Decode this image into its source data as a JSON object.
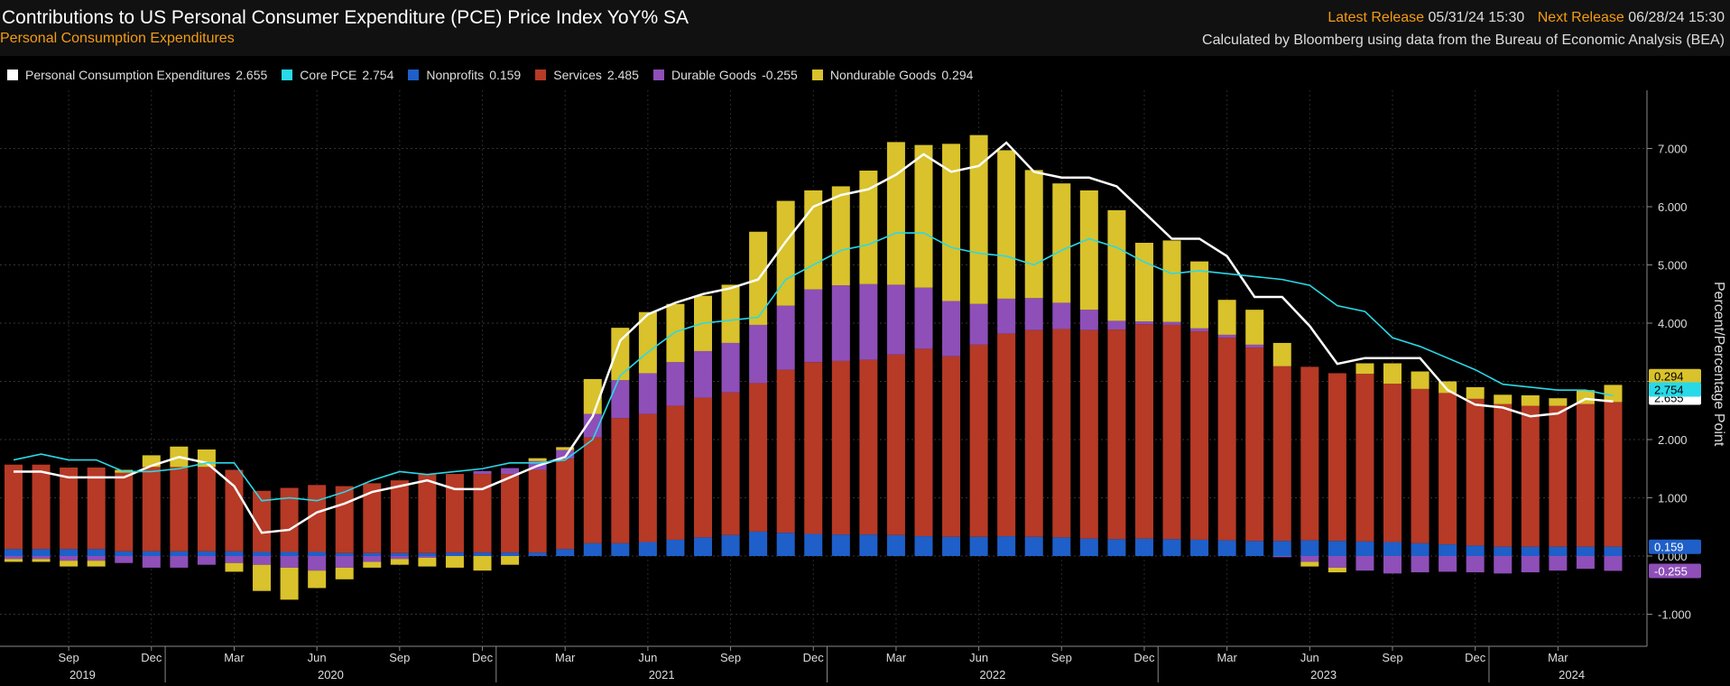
{
  "header": {
    "title": "Contributions to US Personal Consumer Expenditure (PCE) Price Index YoY% SA",
    "subtitle": "Personal Consumption Expenditures",
    "latest_release_label": "Latest Release",
    "latest_release_value": "05/31/24 15:30",
    "next_release_label": "Next Release",
    "next_release_value": "06/28/24 15:30",
    "source": "Calculated by Bloomberg using data from the Bureau of Economic Analysis (BEA)"
  },
  "legend": [
    {
      "name": "Personal Consumption Expenditures",
      "value": "2.655",
      "color": "#ffffff"
    },
    {
      "name": "Core PCE",
      "value": "2.754",
      "color": "#29d9e8"
    },
    {
      "name": "Nonprofits",
      "value": "0.159",
      "color": "#1f5fc9"
    },
    {
      "name": "Services",
      "value": "2.485",
      "color": "#b63a26"
    },
    {
      "name": "Durable Goods",
      "value": "-0.255",
      "color": "#8e4fb8"
    },
    {
      "name": "Nondurable Goods",
      "value": "0.294",
      "color": "#d9c22b"
    }
  ],
  "chart_data": {
    "type": "bar",
    "stacked": true,
    "ylabel": "Percent/Percentage Point",
    "ylim": [
      -1.5,
      8.0
    ],
    "yticks": [
      "7.000",
      "6.000",
      "5.000",
      "4.000",
      "3.000",
      "2.000",
      "1.000",
      "0.000",
      "-1.000"
    ],
    "ytick_values": [
      7,
      6,
      5,
      4,
      3,
      2,
      1,
      0,
      -1
    ],
    "grid": true,
    "legend_position": "top-left",
    "x_axis": {
      "month_labels": [
        {
          "index": 2,
          "label": "Sep"
        },
        {
          "index": 5,
          "label": "Dec"
        },
        {
          "index": 8,
          "label": "Mar"
        },
        {
          "index": 11,
          "label": "Jun"
        },
        {
          "index": 14,
          "label": "Sep"
        },
        {
          "index": 17,
          "label": "Dec"
        },
        {
          "index": 20,
          "label": "Mar"
        },
        {
          "index": 23,
          "label": "Jun"
        },
        {
          "index": 26,
          "label": "Sep"
        },
        {
          "index": 29,
          "label": "Dec"
        },
        {
          "index": 32,
          "label": "Mar"
        },
        {
          "index": 35,
          "label": "Jun"
        },
        {
          "index": 38,
          "label": "Sep"
        },
        {
          "index": 41,
          "label": "Dec"
        },
        {
          "index": 44,
          "label": "Mar"
        },
        {
          "index": 47,
          "label": "Jun"
        },
        {
          "index": 50,
          "label": "Sep"
        },
        {
          "index": 53,
          "label": "Dec"
        },
        {
          "index": 56,
          "label": "Mar"
        }
      ],
      "year_labels": [
        {
          "center": 2.5,
          "label": "2019"
        },
        {
          "center": 11.5,
          "label": "2020"
        },
        {
          "center": 23.5,
          "label": "2021"
        },
        {
          "center": 35.5,
          "label": "2022"
        },
        {
          "center": 47.5,
          "label": "2023"
        },
        {
          "center": 56.5,
          "label": "2024"
        }
      ],
      "year_boundaries": [
        5.5,
        17.5,
        29.5,
        41.5,
        53.5
      ]
    },
    "series": [
      {
        "name": "Nonprofits",
        "color": "#1f5fc9",
        "values": [
          0.12,
          0.12,
          0.12,
          0.12,
          0.08,
          0.08,
          0.08,
          0.08,
          0.08,
          0.07,
          0.07,
          0.07,
          0.05,
          0.05,
          0.05,
          0.05,
          0.06,
          0.06,
          0.06,
          0.06,
          0.12,
          0.22,
          0.22,
          0.24,
          0.28,
          0.32,
          0.36,
          0.42,
          0.4,
          0.38,
          0.37,
          0.37,
          0.36,
          0.34,
          0.33,
          0.33,
          0.34,
          0.33,
          0.32,
          0.3,
          0.29,
          0.3,
          0.29,
          0.28,
          0.27,
          0.26,
          0.26,
          0.27,
          0.26,
          0.25,
          0.24,
          0.22,
          0.2,
          0.18,
          0.16,
          0.16,
          0.16,
          0.16,
          0.16
        ]
      },
      {
        "name": "Services",
        "color": "#b63a26",
        "values": [
          1.45,
          1.45,
          1.4,
          1.4,
          1.35,
          1.45,
          1.45,
          1.45,
          1.4,
          1.05,
          1.1,
          1.15,
          1.15,
          1.2,
          1.25,
          1.35,
          1.35,
          1.35,
          1.35,
          1.42,
          1.55,
          1.82,
          2.15,
          2.2,
          2.3,
          2.4,
          2.45,
          2.55,
          2.8,
          2.95,
          2.98,
          3.0,
          3.1,
          3.22,
          3.1,
          3.3,
          3.48,
          3.55,
          3.58,
          3.58,
          3.6,
          3.68,
          3.68,
          3.58,
          3.48,
          3.32,
          3.0,
          2.98,
          2.88,
          2.88,
          2.72,
          2.65,
          2.6,
          2.52,
          2.45,
          2.42,
          2.42,
          2.45,
          2.485
        ]
      },
      {
        "name": "Durable Goods",
        "color": "#8e4fb8",
        "values": [
          -0.05,
          -0.05,
          -0.08,
          -0.08,
          -0.12,
          -0.2,
          -0.2,
          -0.15,
          -0.12,
          -0.15,
          -0.2,
          -0.25,
          -0.2,
          -0.1,
          -0.05,
          -0.03,
          0.0,
          0.05,
          0.1,
          0.15,
          0.15,
          0.4,
          0.65,
          0.7,
          0.75,
          0.8,
          0.85,
          1.0,
          1.1,
          1.25,
          1.3,
          1.3,
          1.2,
          1.05,
          0.95,
          0.7,
          0.6,
          0.55,
          0.45,
          0.35,
          0.15,
          0.05,
          0.05,
          0.05,
          0.05,
          0.05,
          -0.02,
          -0.1,
          -0.2,
          -0.25,
          -0.3,
          -0.28,
          -0.27,
          -0.28,
          -0.3,
          -0.28,
          -0.25,
          -0.22,
          -0.255
        ]
      },
      {
        "name": "Nondurable Goods",
        "color": "#d9c22b",
        "values": [
          -0.05,
          -0.05,
          -0.1,
          -0.1,
          0.05,
          0.2,
          0.35,
          0.3,
          -0.15,
          -0.45,
          -0.55,
          -0.3,
          -0.2,
          -0.1,
          -0.1,
          -0.15,
          -0.2,
          -0.25,
          -0.15,
          0.05,
          0.05,
          0.6,
          0.9,
          1.05,
          1.0,
          0.95,
          1.0,
          1.6,
          1.8,
          1.7,
          1.7,
          1.95,
          2.45,
          2.45,
          2.7,
          2.9,
          2.55,
          2.2,
          2.05,
          2.05,
          1.9,
          1.35,
          1.4,
          1.15,
          0.6,
          0.6,
          0.4,
          -0.08,
          -0.08,
          0.18,
          0.35,
          0.3,
          0.2,
          0.2,
          0.16,
          0.18,
          0.13,
          0.24,
          0.294
        ]
      }
    ],
    "lines": [
      {
        "name": "Personal Consumption Expenditures",
        "color": "#ffffff",
        "values": [
          1.45,
          1.45,
          1.35,
          1.35,
          1.35,
          1.55,
          1.7,
          1.6,
          1.2,
          0.4,
          0.45,
          0.75,
          0.9,
          1.1,
          1.2,
          1.3,
          1.15,
          1.15,
          1.35,
          1.55,
          1.7,
          2.4,
          3.7,
          4.15,
          4.35,
          4.5,
          4.6,
          4.75,
          5.4,
          6.0,
          6.2,
          6.3,
          6.55,
          6.9,
          6.6,
          6.7,
          7.1,
          6.6,
          6.5,
          6.5,
          6.35,
          5.9,
          5.45,
          5.45,
          5.15,
          4.45,
          4.45,
          3.95,
          3.3,
          3.4,
          3.4,
          3.4,
          2.85,
          2.6,
          2.55,
          2.4,
          2.45,
          2.7,
          2.655
        ]
      },
      {
        "name": "Core PCE",
        "color": "#29d9e8",
        "values": [
          1.65,
          1.75,
          1.65,
          1.65,
          1.45,
          1.45,
          1.5,
          1.6,
          1.6,
          0.95,
          1.0,
          0.95,
          1.1,
          1.3,
          1.45,
          1.4,
          1.45,
          1.5,
          1.6,
          1.6,
          1.65,
          2.0,
          3.1,
          3.5,
          3.85,
          4.0,
          4.05,
          4.1,
          4.75,
          5.0,
          5.25,
          5.35,
          5.55,
          5.55,
          5.3,
          5.2,
          5.15,
          5.0,
          5.25,
          5.45,
          5.3,
          5.05,
          4.85,
          4.9,
          4.85,
          4.8,
          4.75,
          4.65,
          4.3,
          4.2,
          3.75,
          3.6,
          3.4,
          3.2,
          2.95,
          2.9,
          2.85,
          2.85,
          2.754
        ]
      }
    ],
    "end_labels": [
      {
        "value": "0.294",
        "y": 3.09,
        "color": "#d9c22b"
      },
      {
        "value": "2.655",
        "y": 2.72,
        "color": "#ffffff"
      },
      {
        "value": "2.754",
        "y": 2.86,
        "color": "#29d9e8"
      },
      {
        "value": "0.159",
        "y": 0.159,
        "color": "#1f5fc9"
      },
      {
        "value": "-0.255",
        "y": -0.255,
        "color": "#8e4fb8"
      }
    ]
  }
}
